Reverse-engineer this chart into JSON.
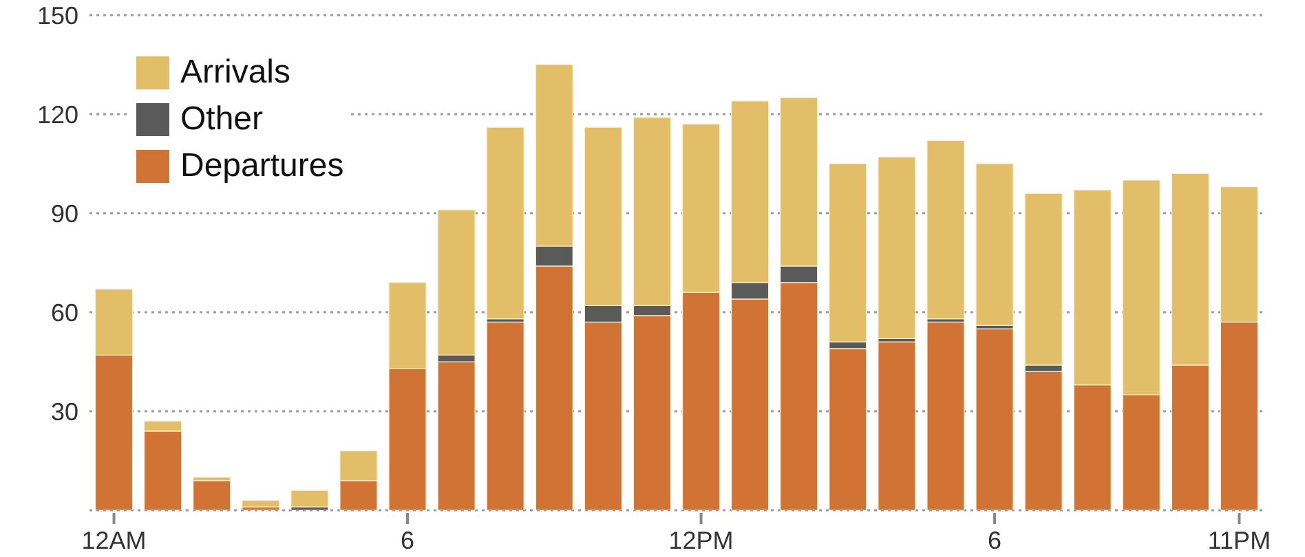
{
  "chart_data": {
    "type": "bar",
    "stacked": true,
    "categories": [
      "12AM",
      null,
      null,
      null,
      null,
      null,
      "6",
      null,
      null,
      null,
      null,
      null,
      "12PM",
      null,
      null,
      null,
      null,
      null,
      "6",
      null,
      null,
      null,
      null,
      "11PM"
    ],
    "series": [
      {
        "name": "Departures",
        "color": "#d07334",
        "values": [
          47,
          24,
          9,
          1,
          0,
          9,
          43,
          45,
          57,
          74,
          57,
          59,
          66,
          64,
          69,
          49,
          51,
          57,
          55,
          42,
          38,
          35,
          44,
          57
        ]
      },
      {
        "name": "Other",
        "color": "#5a5a5a",
        "values": [
          0,
          0,
          0,
          0,
          1,
          0,
          0,
          2,
          1,
          6,
          5,
          3,
          0,
          5,
          5,
          2,
          1,
          1,
          1,
          2,
          0,
          0,
          0,
          0
        ]
      },
      {
        "name": "Arrivals",
        "color": "#e3be69",
        "values": [
          20,
          3,
          1,
          2,
          5,
          9,
          26,
          44,
          58,
          55,
          54,
          57,
          51,
          55,
          51,
          54,
          55,
          54,
          49,
          52,
          59,
          65,
          58,
          41
        ]
      }
    ],
    "ylim": [
      0,
      150
    ],
    "yticks": [
      30,
      60,
      90,
      120,
      150
    ],
    "grid": "y",
    "legend": "top left"
  }
}
